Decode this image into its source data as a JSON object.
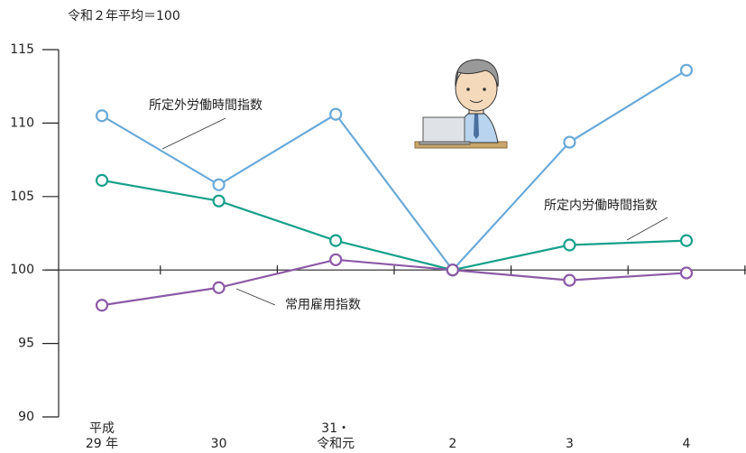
{
  "chart_data": {
    "type": "line",
    "unit_label": "令和２年平均＝100",
    "categories": [
      "平成\n29 年",
      "30",
      "31・\n令和元",
      "2",
      "3",
      "4"
    ],
    "series": [
      {
        "name": "所定外労働時間指数",
        "color": "#69a9d8",
        "values": [
          110.5,
          105.8,
          110.6,
          100,
          108.7,
          113.6
        ]
      },
      {
        "name": "所定内労働時間指数",
        "color": "#17a08a",
        "values": [
          106.1,
          104.7,
          102.0,
          100,
          101.7,
          102.0
        ]
      },
      {
        "name": "常用雇用指数",
        "color": "#8c5aa6",
        "values": [
          97.6,
          98.8,
          100.7,
          100,
          99.3,
          99.8
        ]
      }
    ],
    "ylim": [
      90,
      115
    ],
    "yticks": [
      90,
      95,
      100,
      105,
      110,
      115
    ],
    "baseline": 100
  }
}
